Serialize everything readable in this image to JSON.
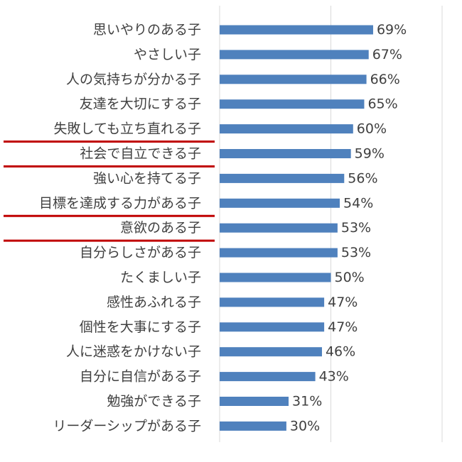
{
  "chart_data": {
    "type": "bar",
    "orientation": "horizontal",
    "categories": [
      "思いやりのある子",
      "やさしい子",
      "人の気持ちが分かる子",
      "友達を大切にする子",
      "失敗しても立ち直れる子",
      "社会で自立できる子",
      "強い心を持てる子",
      "目標を達成する力がある子",
      "意欲のある子",
      "自分らしさがある子",
      "たくましい子",
      "感性あふれる子",
      "個性を大事にする子",
      "人に迷惑をかけない子",
      "自分に自信がある子",
      "勉強ができる子",
      "リーダーシップがある子"
    ],
    "values": [
      69,
      67,
      66,
      65,
      60,
      59,
      56,
      54,
      53,
      53,
      50,
      47,
      47,
      46,
      43,
      31,
      30
    ],
    "value_labels": [
      "69%",
      "67%",
      "66%",
      "65%",
      "60%",
      "59%",
      "56%",
      "54%",
      "53%",
      "53%",
      "50%",
      "47%",
      "47%",
      "46%",
      "43%",
      "31%",
      "30%"
    ],
    "xlim": [
      0,
      100
    ],
    "gridlines_at": [
      50,
      100
    ],
    "grid": true,
    "highlighted_categories": [
      "失敗しても立ち直れる子",
      "社会で自立できる子",
      "目標を達成する力がある子",
      "意欲のある子"
    ],
    "colors": {
      "bar": "#4F81BD",
      "text": "#404040",
      "gridline": "#D9D9D9",
      "underline": "#C00000"
    }
  }
}
